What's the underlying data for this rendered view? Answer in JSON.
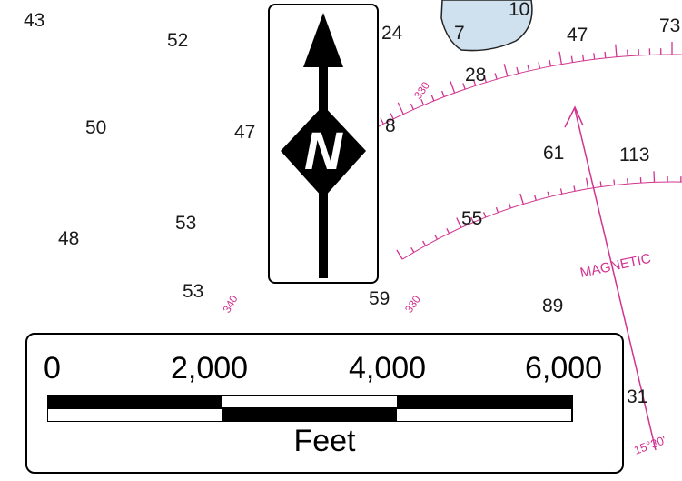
{
  "chart": {
    "soundings": [
      {
        "id": "s1",
        "text": "43"
      },
      {
        "id": "s2",
        "text": "52"
      },
      {
        "id": "s3",
        "text": "24"
      },
      {
        "id": "s4",
        "text": "7"
      },
      {
        "id": "s5",
        "text": "10"
      },
      {
        "id": "s6",
        "text": "47"
      },
      {
        "id": "s7",
        "text": "73"
      },
      {
        "id": "s8",
        "text": "28"
      },
      {
        "id": "s9",
        "text": "50"
      },
      {
        "id": "s10",
        "text": "47"
      },
      {
        "id": "s11",
        "text": "8"
      },
      {
        "id": "s12",
        "text": "61"
      },
      {
        "id": "s13",
        "text": "113"
      },
      {
        "id": "s14",
        "text": "48"
      },
      {
        "id": "s15",
        "text": "53"
      },
      {
        "id": "s16",
        "text": "55"
      },
      {
        "id": "s17",
        "text": "53"
      },
      {
        "id": "s18",
        "text": "59"
      },
      {
        "id": "s19",
        "text": "89"
      },
      {
        "id": "s20",
        "text": "31"
      }
    ],
    "compass_labels": {
      "deg_330_upper": "330",
      "deg_340": "340",
      "deg_330_lower": "330",
      "magnetic": "MAGNETIC",
      "lower_right": "15°30'"
    },
    "colors": {
      "water": "#ffffff",
      "land_shoal": "#cfe0ee",
      "compass_rose": "#d1338f",
      "ink": "#000000"
    }
  },
  "north_arrow": {
    "letter": "N",
    "icon": "north-arrow-icon"
  },
  "scale_bar": {
    "ticks": [
      "0",
      "2,000",
      "4,000",
      "6,000"
    ],
    "unit": "Feet"
  }
}
